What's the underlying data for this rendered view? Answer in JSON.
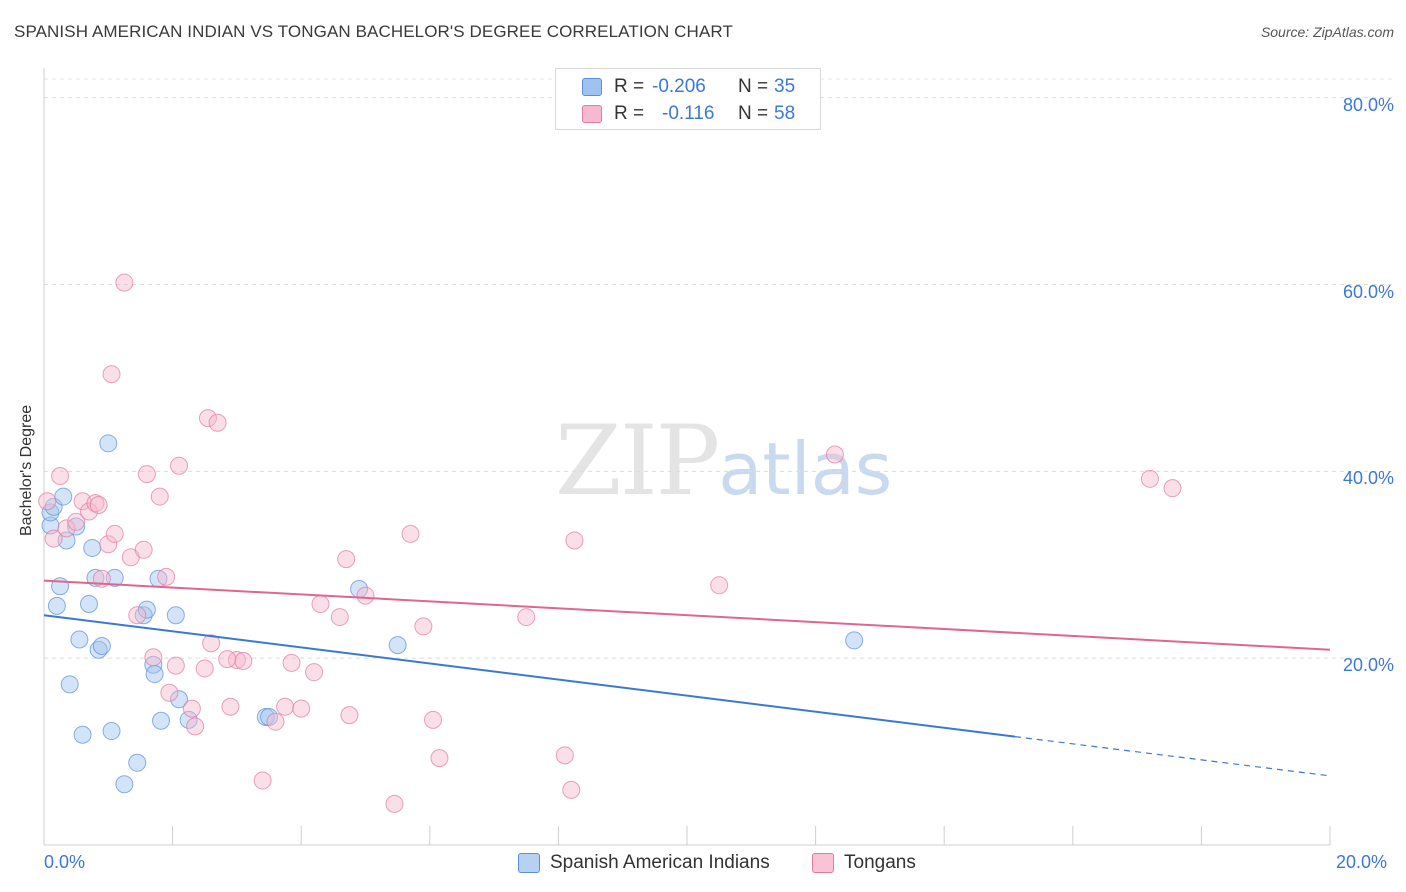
{
  "title": "SPANISH AMERICAN INDIAN VS TONGAN BACHELOR'S DEGREE CORRELATION CHART",
  "source": "Source: ZipAtlas.com",
  "watermark": {
    "zip": "ZIP",
    "atlas": "atlas"
  },
  "legend": {
    "r_label": "R =",
    "n_label": "N =",
    "rows": [
      {
        "r": "-0.206",
        "n": "35",
        "color": "#9fc3f0",
        "border": "#5b8fd6"
      },
      {
        "r": "-0.116",
        "n": "58",
        "color": "#f7b9cd",
        "border": "#e07aa0"
      }
    ]
  },
  "bottom_legend": [
    {
      "label": "Spanish American Indians",
      "color": "#b7d1f3",
      "border": "#5b8fd6"
    },
    {
      "label": "Tongans",
      "color": "#f8c4d5",
      "border": "#e07aa0"
    }
  ],
  "chart_data": {
    "type": "scatter",
    "title": "SPANISH AMERICAN INDIAN VS TONGAN BACHELOR'S DEGREE CORRELATION CHART",
    "xlabel": "",
    "ylabel": "Bachelor's Degree",
    "xlim": [
      0,
      20
    ],
    "ylim": [
      0,
      82
    ],
    "x_ticks": [
      "0.0%",
      "20.0%"
    ],
    "y_ticks": [
      {
        "value": 20,
        "label": "20.0%"
      },
      {
        "value": 40,
        "label": "40.0%"
      },
      {
        "value": 60,
        "label": "60.0%"
      },
      {
        "value": 80,
        "label": "80.0%"
      }
    ],
    "grid": true,
    "series": [
      {
        "name": "Spanish American Indians",
        "color": "#5b8fd6",
        "fill": "rgba(159,195,240,0.45)",
        "trend": {
          "x0": 0,
          "y0": 24.6,
          "x1": 15.1,
          "y1": 11.6,
          "dash_to_x": 20,
          "dash_to_y": 7.4,
          "color": "#3a78d4"
        },
        "points": [
          [
            0.1,
            34.2
          ],
          [
            0.1,
            35.6
          ],
          [
            0.15,
            36.2
          ],
          [
            0.2,
            25.6
          ],
          [
            0.25,
            27.7
          ],
          [
            0.3,
            37.3
          ],
          [
            0.35,
            32.6
          ],
          [
            0.4,
            17.2
          ],
          [
            0.5,
            34.1
          ],
          [
            0.55,
            22.0
          ],
          [
            0.6,
            11.8
          ],
          [
            0.7,
            25.8
          ],
          [
            0.75,
            31.8
          ],
          [
            0.8,
            28.6
          ],
          [
            0.85,
            20.9
          ],
          [
            0.9,
            21.3
          ],
          [
            1.0,
            43.0
          ],
          [
            1.05,
            12.2
          ],
          [
            1.1,
            28.6
          ],
          [
            1.25,
            6.5
          ],
          [
            1.45,
            8.8
          ],
          [
            1.55,
            24.6
          ],
          [
            1.6,
            25.2
          ],
          [
            1.7,
            19.3
          ],
          [
            1.72,
            18.3
          ],
          [
            1.78,
            28.5
          ],
          [
            1.82,
            13.3
          ],
          [
            2.05,
            24.6
          ],
          [
            2.1,
            15.6
          ],
          [
            2.25,
            13.4
          ],
          [
            3.45,
            13.7
          ],
          [
            3.5,
            13.7
          ],
          [
            4.9,
            27.4
          ],
          [
            5.5,
            21.4
          ],
          [
            12.6,
            21.9
          ]
        ]
      },
      {
        "name": "Tongans",
        "color": "#e07aa0",
        "fill": "rgba(247,185,205,0.45)",
        "trend": {
          "x0": 0,
          "y0": 28.3,
          "x1": 20,
          "y1": 20.9,
          "color": "#e06690"
        },
        "points": [
          [
            0.05,
            36.8
          ],
          [
            0.15,
            32.8
          ],
          [
            0.25,
            39.5
          ],
          [
            0.35,
            33.9
          ],
          [
            0.5,
            34.6
          ],
          [
            0.6,
            36.8
          ],
          [
            0.7,
            35.7
          ],
          [
            0.8,
            36.6
          ],
          [
            0.85,
            36.4
          ],
          [
            0.9,
            28.5
          ],
          [
            1.0,
            32.2
          ],
          [
            1.05,
            50.4
          ],
          [
            1.1,
            33.3
          ],
          [
            1.25,
            60.2
          ],
          [
            1.35,
            30.8
          ],
          [
            1.45,
            24.6
          ],
          [
            1.55,
            31.6
          ],
          [
            1.6,
            39.7
          ],
          [
            1.7,
            20.1
          ],
          [
            1.8,
            37.3
          ],
          [
            1.9,
            28.7
          ],
          [
            1.95,
            16.3
          ],
          [
            2.05,
            19.2
          ],
          [
            2.1,
            40.6
          ],
          [
            2.3,
            14.6
          ],
          [
            2.35,
            12.7
          ],
          [
            2.5,
            18.9
          ],
          [
            2.55,
            45.7
          ],
          [
            2.6,
            21.6
          ],
          [
            2.7,
            45.2
          ],
          [
            2.9,
            14.8
          ],
          [
            3.0,
            19.8
          ],
          [
            3.1,
            19.7
          ],
          [
            3.4,
            6.9
          ],
          [
            3.6,
            13.2
          ],
          [
            3.75,
            14.8
          ],
          [
            3.85,
            19.5
          ],
          [
            4.0,
            14.6
          ],
          [
            4.2,
            18.5
          ],
          [
            4.3,
            25.8
          ],
          [
            4.6,
            24.4
          ],
          [
            4.7,
            30.6
          ],
          [
            4.75,
            13.9
          ],
          [
            5.0,
            26.7
          ],
          [
            5.45,
            4.4
          ],
          [
            5.7,
            33.3
          ],
          [
            5.9,
            23.4
          ],
          [
            6.05,
            13.4
          ],
          [
            6.15,
            9.3
          ],
          [
            7.5,
            24.4
          ],
          [
            8.1,
            9.6
          ],
          [
            8.2,
            5.9
          ],
          [
            8.25,
            32.6
          ],
          [
            10.5,
            27.8
          ],
          [
            12.3,
            41.8
          ],
          [
            17.2,
            39.2
          ],
          [
            17.55,
            38.2
          ],
          [
            2.85,
            19.9
          ]
        ]
      }
    ]
  }
}
